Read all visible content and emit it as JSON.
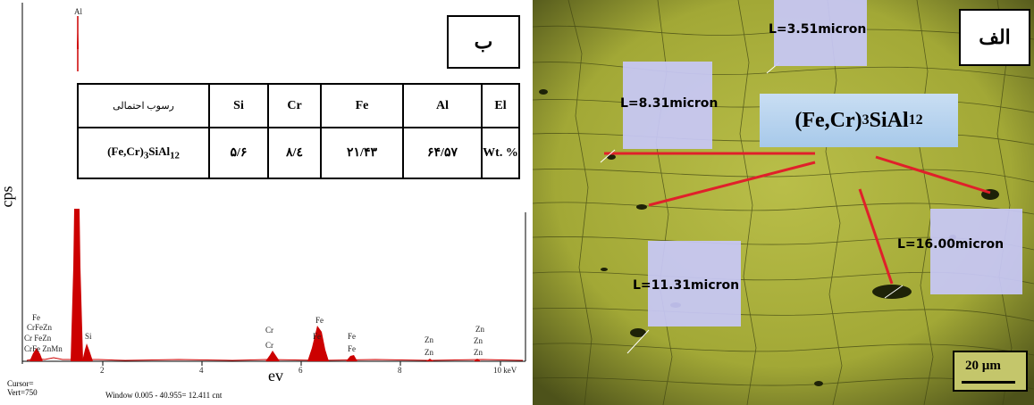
{
  "panel_b": {
    "tag": "ب",
    "ylabel": "cps",
    "xlabel": "ev",
    "top_peak_label": "Al",
    "x_ticks": [
      "2",
      "4",
      "6",
      "8",
      "10 keV"
    ],
    "peak_labels": {
      "left_cluster": [
        "Fe",
        "CrFeZn",
        "Cr FeZn",
        "CrFe ZnMn"
      ],
      "si": "Si",
      "cr": [
        "Cr",
        "Cr"
      ],
      "fe_main": [
        "Fe",
        "Fe"
      ],
      "fe_second": [
        "Fe",
        "Fe"
      ],
      "zn_a": [
        "Zn",
        "Zn"
      ],
      "zn_b": [
        "Zn",
        "Zn",
        "Zn"
      ]
    },
    "cursor_line1": "Cursor=",
    "cursor_line2": "Vert=750",
    "window_text": "Window 0.005 - 40.955=   12.411 cnt",
    "table": {
      "headers": [
        "رسوب احتمالی",
        "Si",
        "Cr",
        "Fe",
        "Al",
        "El"
      ],
      "row": {
        "phase": "(Fe,Cr)",
        "phase_sub1": "3",
        "phase_mid": "SiAl",
        "phase_sub2": "12",
        "si": "۵/۶",
        "cr": "۸/٤",
        "fe": "۲۱/۴۳",
        "al": "۶۴/۵۷",
        "el": "Wt. %"
      }
    }
  },
  "panel_alef": {
    "tag": "الف",
    "formula_main": "(Fe,Cr)",
    "formula_sub1": "3",
    "formula_mid": "SiAl",
    "formula_sub2": "12",
    "measurements": [
      "L=3.51micron",
      "L=8.31micron",
      "L=16.00micron",
      "L=11.31micron"
    ],
    "scale_bar": "20 µm",
    "colors": {
      "matrix": "#9aa12f",
      "annotation_line": "#e0202a",
      "measurement_box": "#c8c8f8"
    }
  },
  "chart_data": {
    "type": "line",
    "title": "",
    "xlabel": "ev",
    "ylabel": "cps",
    "xlim": [
      0,
      10
    ],
    "x_ticks": [
      2,
      4,
      6,
      8,
      10
    ],
    "peaks": [
      {
        "label": "Al",
        "x": 1.49
      },
      {
        "label": "Si",
        "x": 1.74
      },
      {
        "label": "Cr",
        "x": 5.41
      },
      {
        "label": "Fe",
        "x": 6.4
      },
      {
        "label": "Fe",
        "x": 7.06
      },
      {
        "label": "Zn",
        "x": 8.64
      },
      {
        "label": "Zn",
        "x": 9.57
      }
    ]
  }
}
